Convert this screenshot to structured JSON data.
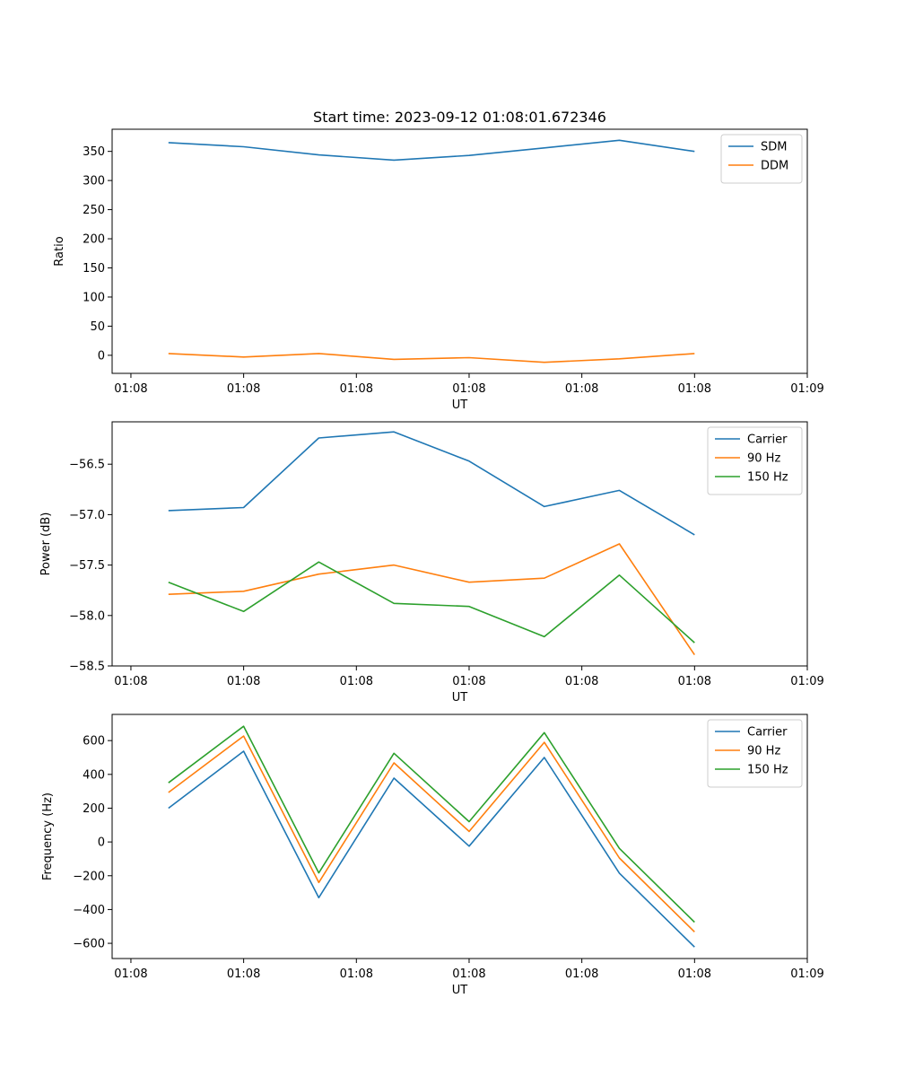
{
  "figure": {
    "title": "Start time: 2023-09-12 01:08:01.672346"
  },
  "colors": {
    "blue": "#1f77b4",
    "orange": "#ff7f0e",
    "green": "#2ca02c"
  },
  "chart_data": [
    {
      "type": "line",
      "title": "Start time: 2023-09-12 01:08:01.672346",
      "xlabel": "UT",
      "ylabel": "Ratio",
      "x": [
        1,
        2,
        3,
        4,
        5,
        6,
        7,
        8
      ],
      "xlim": [
        0.25,
        9.5
      ],
      "x_ticks": [
        0.5,
        2,
        3.5,
        5,
        6.5,
        8,
        9.5
      ],
      "x_tick_labels": [
        "01:08",
        "01:08",
        "01:08",
        "01:08",
        "01:08",
        "01:08",
        "01:09"
      ],
      "ylim": [
        -31,
        388
      ],
      "y_ticks": [
        0,
        50,
        100,
        150,
        200,
        250,
        300,
        350
      ],
      "y_tick_labels": [
        "0",
        "50",
        "100",
        "150",
        "200",
        "250",
        "300",
        "350"
      ],
      "legend_position": "top-right",
      "series": [
        {
          "name": "SDM",
          "color": "#1f77b4",
          "values": [
            365,
            358,
            344,
            335,
            343,
            356,
            369,
            350
          ]
        },
        {
          "name": "DDM",
          "color": "#ff7f0e",
          "values": [
            3,
            -3,
            3,
            -7,
            -4,
            -12,
            -6,
            3
          ]
        }
      ]
    },
    {
      "type": "line",
      "title": "",
      "xlabel": "UT",
      "ylabel": "Power (dB)",
      "x": [
        1,
        2,
        3,
        4,
        5,
        6,
        7,
        8
      ],
      "xlim": [
        0.25,
        9.5
      ],
      "x_ticks": [
        0.5,
        2,
        3.5,
        5,
        6.5,
        8,
        9.5
      ],
      "x_tick_labels": [
        "01:08",
        "01:08",
        "01:08",
        "01:08",
        "01:08",
        "01:08",
        "01:09"
      ],
      "ylim": [
        -58.5,
        -56.08
      ],
      "y_ticks": [
        -58.5,
        -58.0,
        -57.5,
        -57.0,
        -56.5
      ],
      "y_tick_labels": [
        "−58.5",
        "−58.0",
        "−57.5",
        "−57.0",
        "−56.5"
      ],
      "legend_position": "top-right",
      "series": [
        {
          "name": "Carrier",
          "color": "#1f77b4",
          "values": [
            -56.96,
            -56.93,
            -56.24,
            -56.18,
            -56.47,
            -56.92,
            -56.76,
            -57.2
          ]
        },
        {
          "name": "90 Hz",
          "color": "#ff7f0e",
          "values": [
            -57.79,
            -57.76,
            -57.59,
            -57.5,
            -57.67,
            -57.63,
            -57.29,
            -58.39
          ]
        },
        {
          "name": "150 Hz",
          "color": "#2ca02c",
          "values": [
            -57.67,
            -57.96,
            -57.47,
            -57.88,
            -57.91,
            -58.21,
            -57.6,
            -58.27
          ]
        }
      ]
    },
    {
      "type": "line",
      "title": "",
      "xlabel": "UT",
      "ylabel": "Frequency (Hz)",
      "x": [
        1,
        2,
        3,
        4,
        5,
        6,
        7,
        8
      ],
      "xlim": [
        0.25,
        9.5
      ],
      "x_ticks": [
        0.5,
        2,
        3.5,
        5,
        6.5,
        8,
        9.5
      ],
      "x_tick_labels": [
        "01:08",
        "01:08",
        "01:08",
        "01:08",
        "01:08",
        "01:08",
        "01:09"
      ],
      "ylim": [
        -690,
        755
      ],
      "y_ticks": [
        -600,
        -400,
        -200,
        0,
        200,
        400,
        600
      ],
      "y_tick_labels": [
        "−600",
        "−400",
        "−200",
        "0",
        "200",
        "400",
        "600"
      ],
      "legend_position": "top-right",
      "series": [
        {
          "name": "Carrier",
          "color": "#1f77b4",
          "values": [
            200,
            537,
            -330,
            378,
            -25,
            500,
            -185,
            -622
          ]
        },
        {
          "name": "90 Hz",
          "color": "#ff7f0e",
          "values": [
            293,
            627,
            -240,
            468,
            62,
            590,
            -95,
            -532
          ]
        },
        {
          "name": "150 Hz",
          "color": "#2ca02c",
          "values": [
            350,
            685,
            -183,
            525,
            120,
            647,
            -38,
            -475
          ]
        }
      ]
    }
  ]
}
